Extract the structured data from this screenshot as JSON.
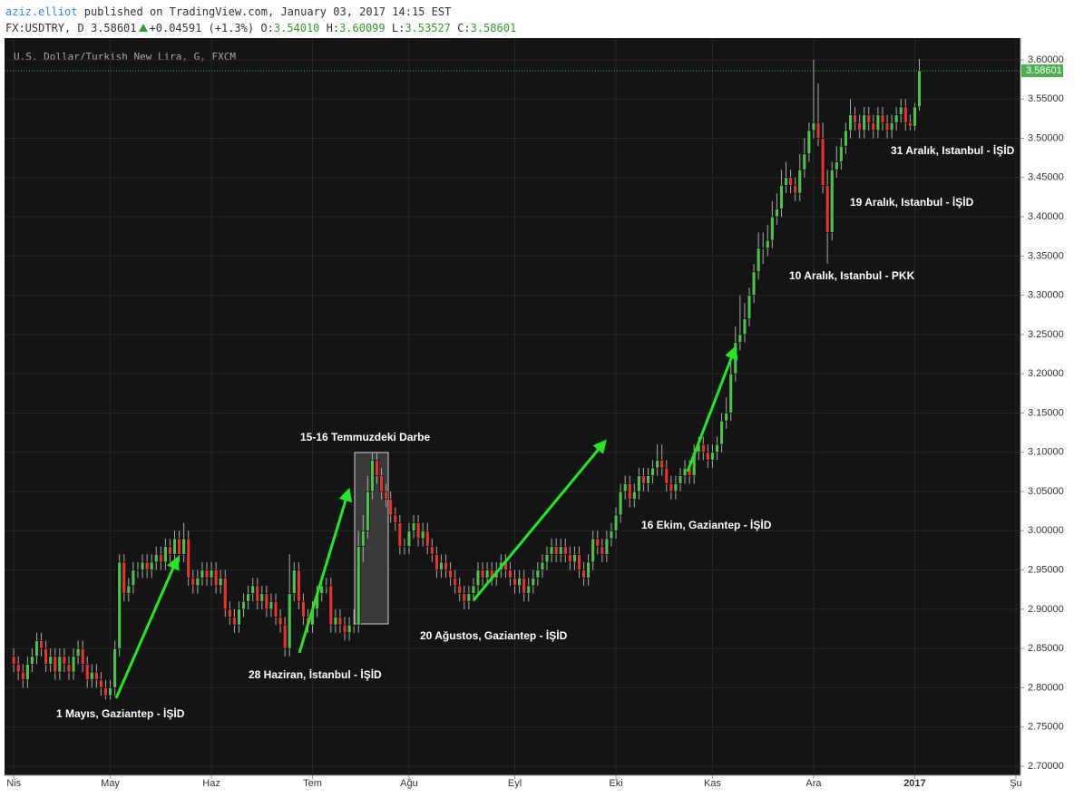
{
  "header": {
    "author": "aziz.elliot",
    "published": "published on TradingView.com, January 03, 2017 14:15 EST",
    "symbol": "FX:USDTRY, D",
    "last": "3.58601",
    "change": "+0.04591 (+1.3%)",
    "ohlc": [
      {
        "key": "O:",
        "value": "3.54010"
      },
      {
        "key": "H:",
        "value": "3.60099"
      },
      {
        "key": "L:",
        "value": "3.53527"
      },
      {
        "key": "C:",
        "value": "3.58601"
      }
    ]
  },
  "chart_data": {
    "type": "candlestick",
    "title": "U.S. Dollar/Turkish New Lira, G, FXCM",
    "up_color": "#4cc44a",
    "down_color": "#e8352c",
    "grid": true,
    "ylim": [
      2.6884,
      3.6277
    ],
    "yticks": [
      {
        "value": 2.7,
        "label": "2.70000"
      },
      {
        "value": 2.75,
        "label": "2.75000"
      },
      {
        "value": 2.8,
        "label": "2.80000"
      },
      {
        "value": 2.85,
        "label": "2.85000"
      },
      {
        "value": 2.9,
        "label": "2.90000"
      },
      {
        "value": 2.95,
        "label": "2.95000"
      },
      {
        "value": 3.0,
        "label": "3.00000"
      },
      {
        "value": 3.05,
        "label": "3.05000"
      },
      {
        "value": 3.1,
        "label": "3.10000"
      },
      {
        "value": 3.15,
        "label": "3.15000"
      },
      {
        "value": 3.2,
        "label": "3.20000"
      },
      {
        "value": 3.25,
        "label": "3.25000"
      },
      {
        "value": 3.3,
        "label": "3.30000"
      },
      {
        "value": 3.35,
        "label": "3.35000"
      },
      {
        "value": 3.4,
        "label": "3.40000"
      },
      {
        "value": 3.45,
        "label": "3.45000"
      },
      {
        "value": 3.5,
        "label": "3.50000"
      },
      {
        "value": 3.55,
        "label": "3.55000"
      },
      {
        "value": 3.6,
        "label": "3.60000"
      }
    ],
    "xlim": [
      -2,
      219
    ],
    "xticks": [
      {
        "value": 0,
        "label": "Nis"
      },
      {
        "value": 21,
        "label": "May"
      },
      {
        "value": 43,
        "label": "Haz"
      },
      {
        "value": 65,
        "label": "Tem"
      },
      {
        "value": 86,
        "label": "Ağu"
      },
      {
        "value": 109,
        "label": "Eyl"
      },
      {
        "value": 131,
        "label": "Eki"
      },
      {
        "value": 152,
        "label": "Kas"
      },
      {
        "value": 174,
        "label": "Ara"
      },
      {
        "value": 196,
        "label": "2017"
      },
      {
        "value": 218,
        "label": "Şu"
      }
    ],
    "last_price": {
      "value": 3.58601,
      "label": "3.58601"
    },
    "annotations": [
      "1 Mayıs, Gaziantep - İŞİD",
      "28 Haziran, İstanbul - İŞİD",
      "15-16 Temmuzdeki Darbe",
      "20 Ağustos, Gaziantep - İŞİD",
      "16 Ekim, Gaziantep - İŞİD",
      "10 Aralık, Istanbul - PKK",
      "19 Aralık, Istanbul - İŞİD",
      "31 Aralık, Istanbul - İŞİD"
    ],
    "candles": [
      [
        2.84,
        2.85,
        2.82,
        2.83
      ],
      [
        2.83,
        2.84,
        2.81,
        2.82
      ],
      [
        2.82,
        2.83,
        2.8,
        2.81
      ],
      [
        2.81,
        2.84,
        2.8,
        2.83
      ],
      [
        2.83,
        2.85,
        2.82,
        2.84
      ],
      [
        2.84,
        2.87,
        2.83,
        2.86
      ],
      [
        2.86,
        2.87,
        2.84,
        2.85
      ],
      [
        2.85,
        2.86,
        2.82,
        2.83
      ],
      [
        2.83,
        2.85,
        2.82,
        2.84
      ],
      [
        2.84,
        2.85,
        2.81,
        2.82
      ],
      [
        2.82,
        2.85,
        2.81,
        2.84
      ],
      [
        2.84,
        2.85,
        2.82,
        2.83
      ],
      [
        2.83,
        2.84,
        2.81,
        2.82
      ],
      [
        2.82,
        2.85,
        2.81,
        2.84
      ],
      [
        2.84,
        2.86,
        2.83,
        2.85
      ],
      [
        2.85,
        2.86,
        2.82,
        2.83
      ],
      [
        2.83,
        2.84,
        2.8,
        2.81
      ],
      [
        2.81,
        2.83,
        2.8,
        2.82
      ],
      [
        2.82,
        2.83,
        2.8,
        2.81
      ],
      [
        2.81,
        2.82,
        2.79,
        2.8
      ],
      [
        2.8,
        2.81,
        2.785,
        2.79
      ],
      [
        2.79,
        2.81,
        2.785,
        2.8
      ],
      [
        2.8,
        2.86,
        2.79,
        2.85
      ],
      [
        2.85,
        2.97,
        2.84,
        2.96
      ],
      [
        2.96,
        2.97,
        2.91,
        2.92
      ],
      [
        2.92,
        2.94,
        2.91,
        2.93
      ],
      [
        2.93,
        2.96,
        2.92,
        2.95
      ],
      [
        2.95,
        2.96,
        2.94,
        2.95
      ],
      [
        2.95,
        2.97,
        2.94,
        2.96
      ],
      [
        2.96,
        2.97,
        2.94,
        2.95
      ],
      [
        2.95,
        2.97,
        2.94,
        2.96
      ],
      [
        2.96,
        2.98,
        2.95,
        2.97
      ],
      [
        2.97,
        2.98,
        2.95,
        2.96
      ],
      [
        2.96,
        2.99,
        2.95,
        2.98
      ],
      [
        2.98,
        2.99,
        2.96,
        2.97
      ],
      [
        2.97,
        3.0,
        2.96,
        2.99
      ],
      [
        2.99,
        3.0,
        2.96,
        2.97
      ],
      [
        2.97,
        3.01,
        2.96,
        2.99
      ],
      [
        2.99,
        3.0,
        2.93,
        2.94
      ],
      [
        2.94,
        2.95,
        2.92,
        2.93
      ],
      [
        2.93,
        2.95,
        2.92,
        2.94
      ],
      [
        2.94,
        2.96,
        2.93,
        2.95
      ],
      [
        2.95,
        2.96,
        2.93,
        2.94
      ],
      [
        2.94,
        2.96,
        2.93,
        2.95
      ],
      [
        2.95,
        2.96,
        2.92,
        2.93
      ],
      [
        2.93,
        2.95,
        2.92,
        2.94
      ],
      [
        2.94,
        2.95,
        2.89,
        2.9
      ],
      [
        2.9,
        2.91,
        2.88,
        2.89
      ],
      [
        2.89,
        2.9,
        2.87,
        2.88
      ],
      [
        2.88,
        2.91,
        2.87,
        2.9
      ],
      [
        2.9,
        2.92,
        2.89,
        2.91
      ],
      [
        2.91,
        2.93,
        2.9,
        2.92
      ],
      [
        2.92,
        2.94,
        2.91,
        2.93
      ],
      [
        2.93,
        2.94,
        2.9,
        2.91
      ],
      [
        2.91,
        2.93,
        2.9,
        2.92
      ],
      [
        2.92,
        2.93,
        2.89,
        2.9
      ],
      [
        2.9,
        2.92,
        2.89,
        2.91
      ],
      [
        2.91,
        2.92,
        2.88,
        2.89
      ],
      [
        2.89,
        2.9,
        2.87,
        2.88
      ],
      [
        2.88,
        2.89,
        2.84,
        2.85
      ],
      [
        2.85,
        2.97,
        2.84,
        2.92
      ],
      [
        2.92,
        2.96,
        2.91,
        2.95
      ],
      [
        2.95,
        2.96,
        2.9,
        2.91
      ],
      [
        2.91,
        2.92,
        2.88,
        2.89
      ],
      [
        2.89,
        2.9,
        2.87,
        2.88
      ],
      [
        2.88,
        2.91,
        2.87,
        2.9
      ],
      [
        2.9,
        2.93,
        2.89,
        2.92
      ],
      [
        2.92,
        2.94,
        2.91,
        2.93
      ],
      [
        2.93,
        2.94,
        2.92,
        2.93
      ],
      [
        2.93,
        2.94,
        2.87,
        2.88
      ],
      [
        2.88,
        2.9,
        2.87,
        2.89
      ],
      [
        2.89,
        2.9,
        2.87,
        2.88
      ],
      [
        2.88,
        2.89,
        2.86,
        2.87
      ],
      [
        2.87,
        2.89,
        2.86,
        2.88
      ],
      [
        2.88,
        2.9,
        2.87,
        2.88
      ],
      [
        2.88,
        3.0,
        2.87,
        2.98
      ],
      [
        2.98,
        3.02,
        2.96,
        3.0
      ],
      [
        3.0,
        3.07,
        2.99,
        3.05
      ],
      [
        3.05,
        3.1,
        3.04,
        3.09
      ],
      [
        3.09,
        3.1,
        3.06,
        3.07
      ],
      [
        3.07,
        3.08,
        3.04,
        3.05
      ],
      [
        3.05,
        3.06,
        3.03,
        3.04
      ],
      [
        3.04,
        3.05,
        3.01,
        3.02
      ],
      [
        3.02,
        3.03,
        3.0,
        3.01
      ],
      [
        3.01,
        3.02,
        2.97,
        2.98
      ],
      [
        2.98,
        2.99,
        2.97,
        2.98
      ],
      [
        2.98,
        3.01,
        2.97,
        3.0
      ],
      [
        3.0,
        3.02,
        2.99,
        3.01
      ],
      [
        3.01,
        3.02,
        2.98,
        2.99
      ],
      [
        2.99,
        3.01,
        2.98,
        3.0
      ],
      [
        3.0,
        3.01,
        2.97,
        2.98
      ],
      [
        2.98,
        2.99,
        2.96,
        2.97
      ],
      [
        2.97,
        2.98,
        2.94,
        2.95
      ],
      [
        2.95,
        2.97,
        2.94,
        2.96
      ],
      [
        2.96,
        2.97,
        2.94,
        2.95
      ],
      [
        2.95,
        2.96,
        2.93,
        2.94
      ],
      [
        2.94,
        2.95,
        2.92,
        2.93
      ],
      [
        2.93,
        2.94,
        2.91,
        2.92
      ],
      [
        2.92,
        2.93,
        2.9,
        2.91
      ],
      [
        2.91,
        2.93,
        2.9,
        2.92
      ],
      [
        2.92,
        2.94,
        2.91,
        2.93
      ],
      [
        2.93,
        2.96,
        2.92,
        2.95
      ],
      [
        2.95,
        2.96,
        2.93,
        2.94
      ],
      [
        2.94,
        2.96,
        2.93,
        2.95
      ],
      [
        2.95,
        2.96,
        2.93,
        2.94
      ],
      [
        2.94,
        2.96,
        2.93,
        2.95
      ],
      [
        2.95,
        2.97,
        2.94,
        2.96
      ],
      [
        2.96,
        2.97,
        2.94,
        2.95
      ],
      [
        2.95,
        2.96,
        2.93,
        2.94
      ],
      [
        2.94,
        2.95,
        2.92,
        2.93
      ],
      [
        2.93,
        2.95,
        2.92,
        2.94
      ],
      [
        2.94,
        2.95,
        2.91,
        2.92
      ],
      [
        2.92,
        2.94,
        2.91,
        2.93
      ],
      [
        2.93,
        2.95,
        2.92,
        2.94
      ],
      [
        2.94,
        2.96,
        2.93,
        2.95
      ],
      [
        2.95,
        2.97,
        2.94,
        2.96
      ],
      [
        2.96,
        2.98,
        2.95,
        2.97
      ],
      [
        2.97,
        2.99,
        2.96,
        2.98
      ],
      [
        2.98,
        2.99,
        2.96,
        2.97
      ],
      [
        2.97,
        2.99,
        2.96,
        2.98
      ],
      [
        2.98,
        2.99,
        2.96,
        2.97
      ],
      [
        2.97,
        2.98,
        2.95,
        2.96
      ],
      [
        2.96,
        2.98,
        2.95,
        2.97
      ],
      [
        2.97,
        2.98,
        2.94,
        2.95
      ],
      [
        2.95,
        2.96,
        2.93,
        2.94
      ],
      [
        2.94,
        2.97,
        2.93,
        2.96
      ],
      [
        2.96,
        3.0,
        2.95,
        2.99
      ],
      [
        2.99,
        3.0,
        2.97,
        2.98
      ],
      [
        2.98,
        2.99,
        2.96,
        2.97
      ],
      [
        2.97,
        3.0,
        2.96,
        2.99
      ],
      [
        2.99,
        3.01,
        2.98,
        3.0
      ],
      [
        3.0,
        3.03,
        2.99,
        3.02
      ],
      [
        3.02,
        3.06,
        3.01,
        3.05
      ],
      [
        3.05,
        3.07,
        3.04,
        3.06
      ],
      [
        3.06,
        3.07,
        3.03,
        3.04
      ],
      [
        3.04,
        3.06,
        3.03,
        3.05
      ],
      [
        3.05,
        3.08,
        3.04,
        3.07
      ],
      [
        3.07,
        3.08,
        3.05,
        3.06
      ],
      [
        3.06,
        3.08,
        3.05,
        3.07
      ],
      [
        3.07,
        3.09,
        3.06,
        3.08
      ],
      [
        3.08,
        3.11,
        3.07,
        3.09
      ],
      [
        3.09,
        3.11,
        3.07,
        3.08
      ],
      [
        3.08,
        3.09,
        3.05,
        3.06
      ],
      [
        3.06,
        3.07,
        3.04,
        3.05
      ],
      [
        3.05,
        3.07,
        3.04,
        3.06
      ],
      [
        3.06,
        3.08,
        3.05,
        3.07
      ],
      [
        3.07,
        3.09,
        3.06,
        3.08
      ],
      [
        3.08,
        3.09,
        3.06,
        3.07
      ],
      [
        3.07,
        3.11,
        3.06,
        3.1
      ],
      [
        3.1,
        3.12,
        3.09,
        3.11
      ],
      [
        3.11,
        3.12,
        3.09,
        3.1
      ],
      [
        3.1,
        3.11,
        3.08,
        3.09
      ],
      [
        3.09,
        3.11,
        3.08,
        3.1
      ],
      [
        3.1,
        3.12,
        3.09,
        3.11
      ],
      [
        3.11,
        3.15,
        3.1,
        3.14
      ],
      [
        3.14,
        3.17,
        3.13,
        3.15
      ],
      [
        3.15,
        3.22,
        3.14,
        3.2
      ],
      [
        3.2,
        3.26,
        3.19,
        3.24
      ],
      [
        3.24,
        3.3,
        3.23,
        3.25
      ],
      [
        3.25,
        3.29,
        3.24,
        3.27
      ],
      [
        3.27,
        3.31,
        3.26,
        3.3
      ],
      [
        3.3,
        3.34,
        3.29,
        3.33
      ],
      [
        3.33,
        3.38,
        3.32,
        3.36
      ],
      [
        3.36,
        3.38,
        3.34,
        3.36
      ],
      [
        3.36,
        3.39,
        3.35,
        3.37
      ],
      [
        3.37,
        3.42,
        3.36,
        3.4
      ],
      [
        3.4,
        3.43,
        3.39,
        3.41
      ],
      [
        3.41,
        3.46,
        3.4,
        3.44
      ],
      [
        3.44,
        3.47,
        3.43,
        3.45
      ],
      [
        3.45,
        3.46,
        3.43,
        3.44
      ],
      [
        3.44,
        3.45,
        3.42,
        3.43
      ],
      [
        3.43,
        3.48,
        3.42,
        3.46
      ],
      [
        3.46,
        3.5,
        3.45,
        3.48
      ],
      [
        3.48,
        3.52,
        3.47,
        3.51
      ],
      [
        3.51,
        3.6,
        3.5,
        3.52
      ],
      [
        3.52,
        3.57,
        3.49,
        3.5
      ],
      [
        3.5,
        3.52,
        3.43,
        3.44
      ],
      [
        3.44,
        3.46,
        3.34,
        3.38
      ],
      [
        3.38,
        3.47,
        3.37,
        3.46
      ],
      [
        3.46,
        3.49,
        3.45,
        3.47
      ],
      [
        3.47,
        3.5,
        3.46,
        3.49
      ],
      [
        3.49,
        3.52,
        3.48,
        3.51
      ],
      [
        3.51,
        3.55,
        3.5,
        3.53
      ],
      [
        3.53,
        3.54,
        3.51,
        3.52
      ],
      [
        3.52,
        3.53,
        3.5,
        3.51
      ],
      [
        3.51,
        3.54,
        3.5,
        3.53
      ],
      [
        3.53,
        3.54,
        3.51,
        3.52
      ],
      [
        3.52,
        3.53,
        3.5,
        3.51
      ],
      [
        3.51,
        3.54,
        3.5,
        3.53
      ],
      [
        3.53,
        3.54,
        3.51,
        3.52
      ],
      [
        3.52,
        3.53,
        3.5,
        3.51
      ],
      [
        3.51,
        3.53,
        3.5,
        3.52
      ],
      [
        3.52,
        3.54,
        3.51,
        3.53
      ],
      [
        3.53,
        3.55,
        3.52,
        3.54
      ],
      [
        3.54,
        3.55,
        3.51,
        3.52
      ],
      [
        3.52,
        3.53,
        3.51,
        3.515
      ],
      [
        3.515,
        3.545,
        3.51,
        3.5401
      ],
      [
        3.5401,
        3.60099,
        3.53527,
        3.58601
      ]
    ]
  }
}
